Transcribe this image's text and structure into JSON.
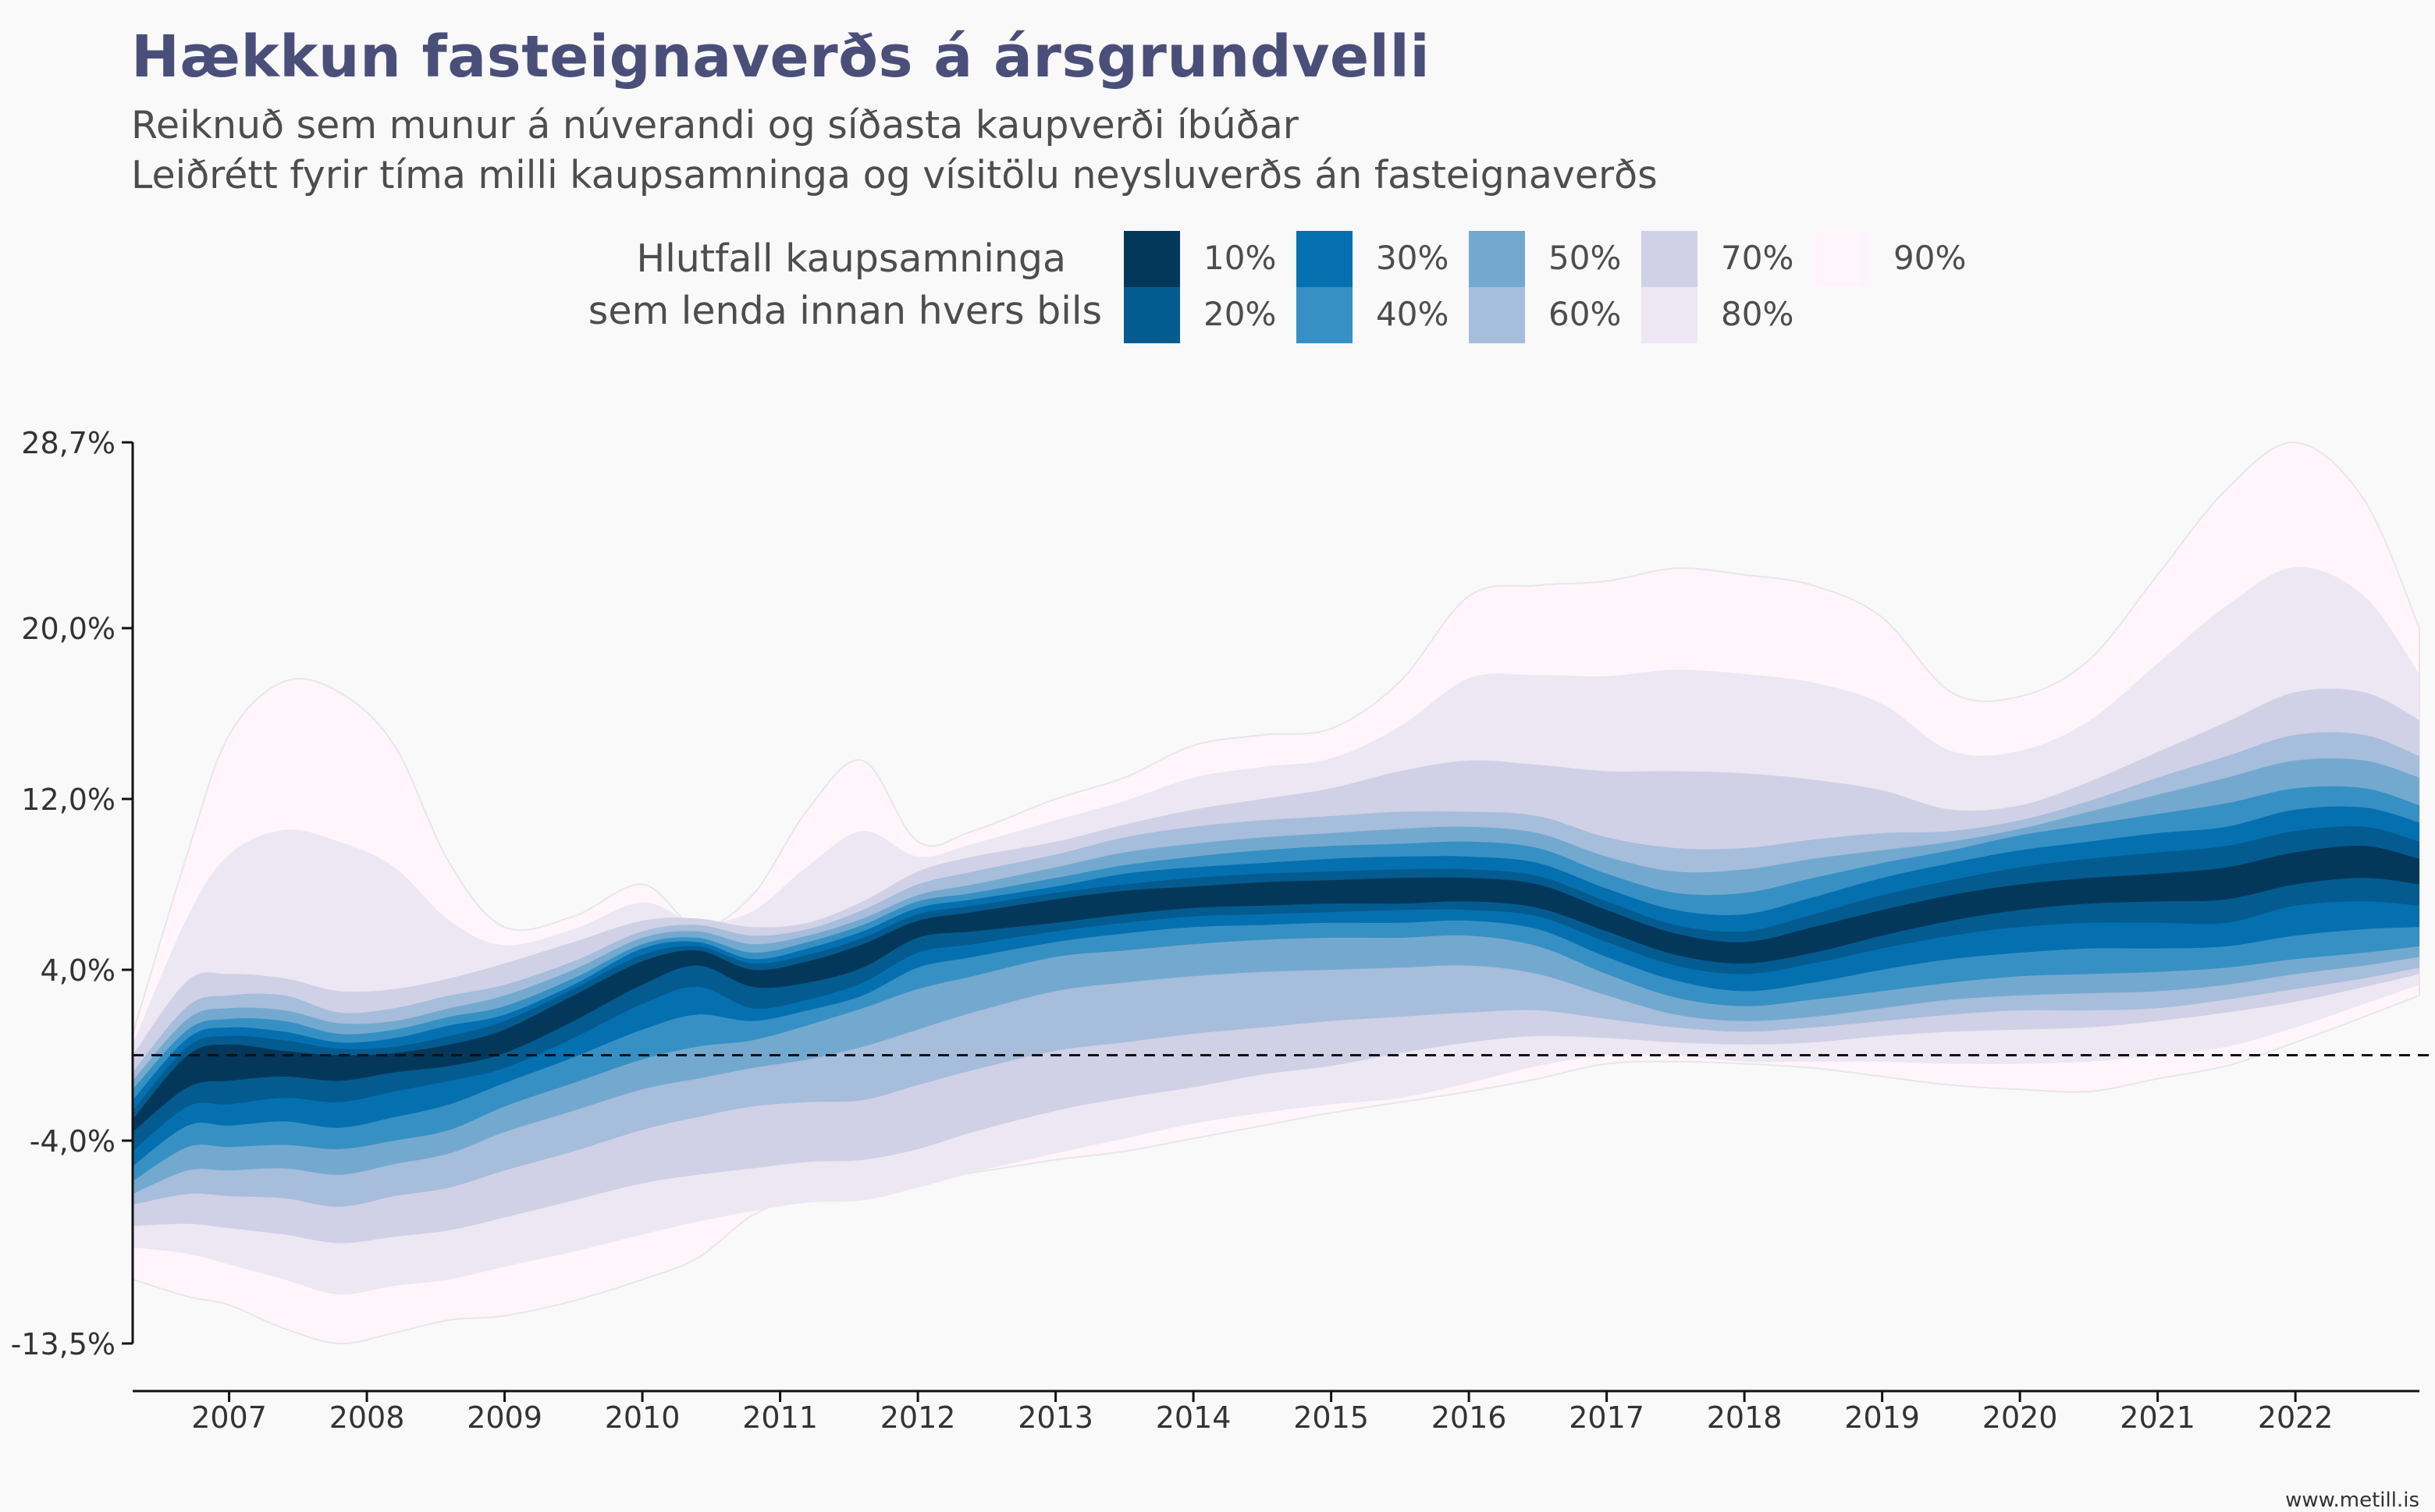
{
  "title": "Hækkun fasteignaverðs á ársgrundvelli",
  "subtitle_lines": [
    "Reiknuð sem munur á núverandi og síðasta kaupverði íbúðar",
    "Leiðrétt fyrir tíma milli kaupsamninga og vísitölu neysluverðs án fasteignaverðs"
  ],
  "legend": {
    "title_lines": [
      "Hlutfall kaupsamninga",
      "sem lenda innan hvers bils"
    ],
    "items": [
      {
        "label": "10%",
        "color": "#04385a"
      },
      {
        "label": "20%",
        "color": "#045b90"
      },
      {
        "label": "30%",
        "color": "#0570b0"
      },
      {
        "label": "40%",
        "color": "#3790c3"
      },
      {
        "label": "50%",
        "color": "#74a9cf"
      },
      {
        "label": "60%",
        "color": "#a6bddb"
      },
      {
        "label": "70%",
        "color": "#d0d1e6"
      },
      {
        "label": "80%",
        "color": "#ece7f2"
      },
      {
        "label": "90%",
        "color": "#fff5fb"
      }
    ]
  },
  "source": "www.metill.is",
  "chart_data": {
    "type": "area",
    "title": "Hækkun fasteignaverðs á ársgrundvelli",
    "description_series": "Nested central intervals (fan chart). Each band gives lower/upper bound of the central interval containing the stated share of purchase agreements.",
    "ylim": [
      -13.5,
      28.7
    ],
    "y_ticks": [
      -13.5,
      -4.0,
      4.0,
      12.0,
      20.0,
      28.7
    ],
    "y_tick_labels": [
      "-13,5%",
      "-4,0%",
      "4,0%",
      "12,0%",
      "20,0%",
      "28,7%"
    ],
    "x_range": [
      2006.3,
      2022.9
    ],
    "x_ticks": [
      2007,
      2008,
      2009,
      2010,
      2011,
      2012,
      2013,
      2014,
      2015,
      2016,
      2017,
      2018,
      2019,
      2020,
      2021,
      2022
    ],
    "x_tick_labels": [
      "2007",
      "2008",
      "2009",
      "2010",
      "2011",
      "2012",
      "2013",
      "2014",
      "2015",
      "2016",
      "2017",
      "2018",
      "2019",
      "2020",
      "2021",
      "2022"
    ],
    "reference_line_y": 0,
    "x": [
      2006.3,
      2006.7,
      2007.0,
      2007.4,
      2007.8,
      2008.2,
      2008.6,
      2009.0,
      2009.5,
      2010.0,
      2010.4,
      2010.8,
      2011.2,
      2011.6,
      2012.0,
      2012.4,
      2013.0,
      2013.5,
      2014.0,
      2014.5,
      2015.0,
      2015.5,
      2016.0,
      2016.5,
      2017.0,
      2017.5,
      2018.0,
      2018.5,
      2019.0,
      2019.5,
      2020.0,
      2020.5,
      2021.0,
      2021.5,
      2022.0,
      2022.5,
      2022.9
    ],
    "bands": [
      {
        "name": "90%",
        "lower": [
          -10.5,
          -11.3,
          -11.7,
          -12.8,
          -13.5,
          -13.0,
          -12.4,
          -12.2,
          -11.5,
          -10.5,
          -9.5,
          -7.5,
          -6.5,
          -6.3,
          -5.8,
          -5.5,
          -4.9,
          -4.5,
          -3.9,
          -3.3,
          -2.7,
          -2.2,
          -1.7,
          -1.1,
          -0.4,
          -0.3,
          -0.4,
          -0.6,
          -1.0,
          -1.4,
          -1.6,
          -1.7,
          -1.1,
          -0.5,
          0.6,
          1.8,
          2.8
        ],
        "upper": [
          1.0,
          9.5,
          15.0,
          17.5,
          17.0,
          14.5,
          9.0,
          6.0,
          6.5,
          8.0,
          6.0,
          7.5,
          11.5,
          13.8,
          10.0,
          10.5,
          12.0,
          13.0,
          14.5,
          15.0,
          15.3,
          17.5,
          21.5,
          22.0,
          22.2,
          22.8,
          22.5,
          22.0,
          20.5,
          17.0,
          16.8,
          18.5,
          22.5,
          26.5,
          28.7,
          26.0,
          20.0
        ]
      },
      {
        "name": "80%",
        "lower": [
          -9.0,
          -9.3,
          -9.8,
          -10.5,
          -11.2,
          -10.8,
          -10.5,
          -9.9,
          -9.2,
          -8.4,
          -7.8,
          -7.3,
          -6.9,
          -6.8,
          -6.2,
          -5.5,
          -4.6,
          -3.9,
          -3.2,
          -2.7,
          -2.3,
          -2.0,
          -1.3,
          -0.5,
          0.0,
          0.0,
          -0.3,
          -0.3,
          -0.3,
          -0.4,
          -0.4,
          -0.3,
          0.0,
          0.4,
          1.3,
          2.4,
          3.3
        ]
      },
      {
        "name": "70%",
        "lower": [
          -8.0,
          -7.9,
          -8.1,
          -8.4,
          -8.8,
          -8.5,
          -8.2,
          -7.6,
          -6.8,
          -6.0,
          -5.6,
          -5.3,
          -5.0,
          -4.9,
          -4.4,
          -3.6,
          -2.6,
          -2.0,
          -1.5,
          -0.9,
          -0.5,
          0.1,
          0.6,
          0.9,
          0.8,
          0.6,
          0.5,
          0.6,
          0.9,
          1.1,
          1.2,
          1.3,
          1.6,
          2.0,
          2.5,
          3.2,
          3.8
        ],
        "upper": [
          0.0,
          3.5,
          3.8,
          3.6,
          3.0,
          3.1,
          3.6,
          4.3,
          5.3,
          6.3,
          6.4,
          6.0,
          6.2,
          7.2,
          8.6,
          9.3,
          10.0,
          10.8,
          11.5,
          12.0,
          12.5,
          13.3,
          13.8,
          13.6,
          13.3,
          13.3,
          13.2,
          12.9,
          12.4,
          11.5,
          11.7,
          12.8,
          14.2,
          15.6,
          17.0,
          17.0,
          15.7
        ]
      },
      {
        "name": "60%",
        "lower": [
          -7.0,
          -6.5,
          -6.6,
          -6.7,
          -7.1,
          -6.6,
          -6.2,
          -5.4,
          -4.5,
          -3.5,
          -2.9,
          -2.4,
          -2.2,
          -2.1,
          -1.4,
          -0.7,
          0.2,
          0.6,
          1.0,
          1.3,
          1.6,
          1.8,
          2.0,
          2.1,
          1.7,
          1.3,
          1.1,
          1.3,
          1.6,
          1.9,
          2.1,
          2.1,
          2.2,
          2.6,
          3.1,
          3.6,
          4.1
        ],
        "upper": [
          -0.8,
          2.3,
          2.8,
          2.8,
          2.0,
          2.2,
          2.8,
          3.3,
          4.4,
          5.8,
          6.1,
          5.6,
          5.9,
          6.8,
          8.0,
          8.6,
          9.4,
          10.2,
          10.7,
          11.0,
          11.2,
          11.4,
          11.4,
          11.2,
          10.2,
          9.7,
          9.7,
          10.1,
          10.4,
          10.5,
          11.0,
          11.9,
          13.0,
          14.0,
          15.0,
          15.0,
          14.0
        ]
      },
      {
        "name": "50%",
        "lower": [
          -6.5,
          -5.4,
          -5.4,
          -5.3,
          -5.6,
          -5.1,
          -4.6,
          -3.6,
          -2.6,
          -1.6,
          -1.1,
          -0.6,
          -0.2,
          0.4,
          1.2,
          2.0,
          3.0,
          3.4,
          3.7,
          3.9,
          4.0,
          4.1,
          4.2,
          3.8,
          2.8,
          1.9,
          1.6,
          1.8,
          2.2,
          2.6,
          2.8,
          2.9,
          3.0,
          3.3,
          3.8,
          4.2,
          4.6
        ],
        "upper": [
          -1.2,
          1.7,
          2.2,
          2.1,
          1.5,
          1.6,
          2.2,
          2.8,
          4.0,
          5.5,
          5.8,
          5.2,
          5.6,
          6.4,
          7.5,
          8.0,
          8.8,
          9.5,
          9.9,
          10.2,
          10.4,
          10.6,
          10.7,
          10.4,
          9.3,
          8.6,
          8.7,
          9.2,
          9.6,
          10.0,
          10.6,
          11.4,
          12.2,
          13.0,
          13.8,
          13.8,
          13.0
        ]
      },
      {
        "name": "40%",
        "lower": [
          -5.9,
          -4.3,
          -4.3,
          -4.2,
          -4.4,
          -4.0,
          -3.5,
          -2.4,
          -1.3,
          -0.2,
          0.4,
          0.7,
          1.4,
          2.2,
          3.1,
          3.7,
          4.6,
          4.9,
          5.2,
          5.4,
          5.5,
          5.5,
          5.6,
          5.1,
          3.8,
          2.7,
          2.3,
          2.6,
          3.0,
          3.4,
          3.7,
          3.8,
          3.9,
          4.1,
          4.5,
          4.8,
          5.1
        ],
        "upper": [
          -1.6,
          1.2,
          1.7,
          1.6,
          1.0,
          1.2,
          1.8,
          2.3,
          3.6,
          5.2,
          5.5,
          4.8,
          5.3,
          6.1,
          7.2,
          7.6,
          8.3,
          8.9,
          9.3,
          9.6,
          9.8,
          9.9,
          10.0,
          9.7,
          8.5,
          7.6,
          7.6,
          8.3,
          9.0,
          9.6,
          10.3,
          10.8,
          11.3,
          11.8,
          12.5,
          12.5,
          11.7
        ]
      },
      {
        "name": "30%",
        "lower": [
          -5.2,
          -3.3,
          -3.3,
          -3.1,
          -3.4,
          -2.9,
          -2.3,
          -1.3,
          -0.1,
          1.2,
          1.9,
          1.6,
          2.1,
          2.8,
          4.1,
          4.6,
          5.3,
          5.7,
          6.0,
          6.1,
          6.2,
          6.2,
          6.3,
          5.9,
          4.6,
          3.5,
          3.0,
          3.4,
          4.0,
          4.5,
          4.8,
          5.0,
          5.0,
          5.1,
          5.6,
          5.9,
          6.0
        ],
        "upper": [
          -2.1,
          0.8,
          1.3,
          1.1,
          0.6,
          0.8,
          1.4,
          1.9,
          3.3,
          5.0,
          5.3,
          4.5,
          5.0,
          5.8,
          6.9,
          7.3,
          7.9,
          8.5,
          8.8,
          9.0,
          9.2,
          9.3,
          9.3,
          9.0,
          7.8,
          6.8,
          6.6,
          7.4,
          8.3,
          9.0,
          9.6,
          10.0,
          10.4,
          10.7,
          11.5,
          11.6,
          10.9
        ]
      },
      {
        "name": "20%",
        "lower": [
          -4.5,
          -2.4,
          -2.3,
          -2.0,
          -2.2,
          -1.7,
          -1.2,
          -0.6,
          0.8,
          2.4,
          3.2,
          2.2,
          2.6,
          3.4,
          4.8,
          5.2,
          5.8,
          6.2,
          6.5,
          6.6,
          6.7,
          6.8,
          6.8,
          6.5,
          5.3,
          4.2,
          3.8,
          4.3,
          5.0,
          5.6,
          6.0,
          6.2,
          6.2,
          6.2,
          7.0,
          7.2,
          7.0
        ],
        "upper": [
          -2.6,
          0.4,
          0.9,
          0.7,
          0.3,
          0.4,
          0.9,
          1.6,
          3.1,
          4.7,
          5.1,
          4.3,
          4.7,
          5.5,
          6.6,
          7.0,
          7.6,
          8.0,
          8.3,
          8.5,
          8.6,
          8.7,
          8.7,
          8.4,
          7.2,
          6.1,
          5.8,
          6.6,
          7.5,
          8.2,
          8.8,
          9.2,
          9.5,
          9.8,
          10.5,
          10.7,
          10.0
        ]
      },
      {
        "name": "10%",
        "lower": [
          -3.6,
          -1.5,
          -1.2,
          -1.0,
          -1.2,
          -0.8,
          -0.5,
          0.1,
          1.6,
          3.3,
          4.2,
          3.2,
          3.4,
          4.1,
          5.5,
          5.8,
          6.2,
          6.6,
          6.9,
          7.0,
          7.1,
          7.1,
          7.2,
          6.9,
          5.8,
          4.7,
          4.3,
          4.8,
          5.6,
          6.3,
          6.8,
          7.1,
          7.2,
          7.3,
          8.0,
          8.3,
          8.0
        ],
        "upper": [
          -3.0,
          0.0,
          0.5,
          0.2,
          0.0,
          0.1,
          0.5,
          1.2,
          2.8,
          4.4,
          4.9,
          4.0,
          4.4,
          5.2,
          6.3,
          6.7,
          7.3,
          7.7,
          7.9,
          8.1,
          8.2,
          8.3,
          8.3,
          8.0,
          6.8,
          5.7,
          5.3,
          6.0,
          6.8,
          7.5,
          8.0,
          8.3,
          8.5,
          8.8,
          9.5,
          9.8,
          9.2
        ]
      }
    ]
  }
}
